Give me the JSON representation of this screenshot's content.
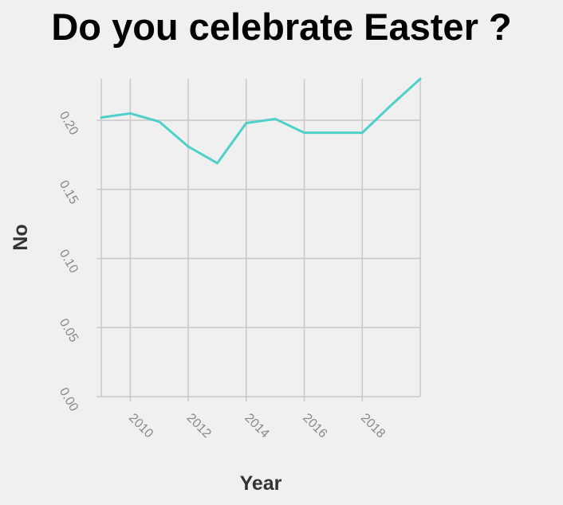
{
  "chart_data": {
    "type": "line",
    "title": "Do you celebrate Easter ?",
    "xlabel": "Year",
    "ylabel": "No",
    "x": [
      2009,
      2010,
      2011,
      2012,
      2013,
      2014,
      2015,
      2016,
      2017,
      2018,
      2019,
      2020
    ],
    "series": [
      {
        "values": [
          0.202,
          0.205,
          0.199,
          0.181,
          0.169,
          0.198,
          0.201,
          0.191,
          0.191,
          0.191,
          0.211,
          0.23
        ]
      }
    ],
    "x_ticks": [
      "2010",
      "2012",
      "2014",
      "2016",
      "2018"
    ],
    "y_ticks": [
      "0.00",
      "0.05",
      "0.10",
      "0.15",
      "0.20"
    ],
    "xlim": [
      2009,
      2020
    ],
    "ylim": [
      0,
      0.23
    ],
    "grid": true,
    "line_color": "#4dd0c9"
  }
}
